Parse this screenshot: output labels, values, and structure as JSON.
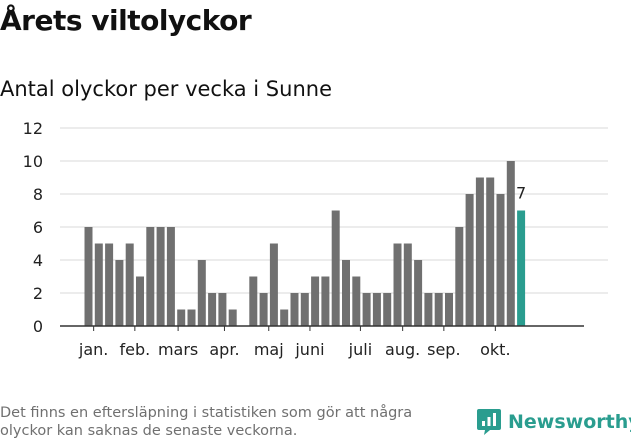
{
  "title": "Årets viltolyckor",
  "subtitle": "Antal olyckor per vecka i Sunne",
  "footnote": "Det finns en eftersläpning i statistiken som gör att några olyckor kan saknas de senaste veckorna.",
  "brand": {
    "name": "Newsworthy",
    "icon": "newsworthy-logo-icon",
    "color": "#2a9d8f"
  },
  "chart_data": {
    "type": "bar",
    "xlabel": "",
    "ylabel": "",
    "ylim": [
      0,
      12
    ],
    "yticks": [
      0,
      2,
      4,
      6,
      8,
      10,
      12
    ],
    "grid": true,
    "weeks": [
      1,
      2,
      3,
      4,
      5,
      6,
      7,
      8,
      9,
      10,
      11,
      12,
      13,
      14,
      15,
      16,
      17,
      18,
      19,
      20,
      21,
      22,
      23,
      24,
      25,
      26,
      27,
      28,
      29,
      30,
      31,
      32,
      33,
      34,
      35,
      36,
      37,
      38,
      39,
      40,
      41,
      42,
      43,
      44
    ],
    "values": [
      6,
      5,
      5,
      4,
      5,
      3,
      6,
      6,
      6,
      1,
      1,
      4,
      2,
      2,
      1,
      0,
      3,
      2,
      5,
      1,
      2,
      2,
      3,
      3,
      7,
      4,
      3,
      2,
      2,
      2,
      5,
      5,
      4,
      2,
      2,
      2,
      6,
      8,
      9,
      9,
      8,
      10,
      7,
      0
    ],
    "month_labels": [
      {
        "label": "jan.",
        "week": 1.5
      },
      {
        "label": "feb.",
        "week": 5.5
      },
      {
        "label": "mars",
        "week": 9.7
      },
      {
        "label": "apr.",
        "week": 14.2
      },
      {
        "label": "maj",
        "week": 18.5
      },
      {
        "label": "juni",
        "week": 22.5
      },
      {
        "label": "juli",
        "week": 27.4
      },
      {
        "label": "aug.",
        "week": 31.5
      },
      {
        "label": "sep.",
        "week": 35.5
      },
      {
        "label": "okt.",
        "week": 40.5
      }
    ],
    "highlight": {
      "week": 43,
      "value": 7,
      "label": "7"
    },
    "bar_color": "#707070",
    "highlight_color": "#2a9d8f"
  }
}
